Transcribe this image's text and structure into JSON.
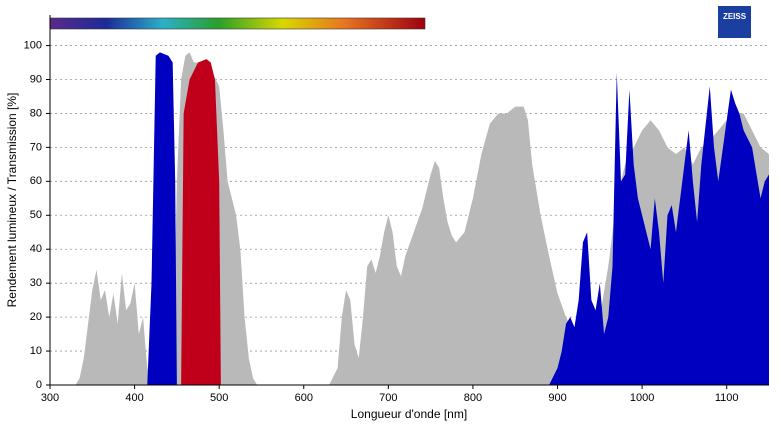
{
  "chart_data": {
    "type": "area",
    "x_label": "Longueur d'onde [nm]",
    "y_label": "Rendement lumineux / Transmission [%]",
    "logo": "ZEISS",
    "xlim": [
      300,
      1150
    ],
    "xticks": [
      300,
      400,
      500,
      600,
      700,
      800,
      900,
      1000,
      1100
    ],
    "ylim": [
      0,
      109
    ],
    "yticks": [
      0,
      10,
      20,
      30,
      40,
      50,
      60,
      70,
      80,
      90,
      100
    ],
    "grid": true,
    "series": [
      {
        "color": "#b9b9b9",
        "x": [
          330,
          335,
          340,
          345,
          350,
          355,
          360,
          365,
          370,
          375,
          380,
          385,
          390,
          395,
          400,
          405,
          410,
          415,
          420,
          445,
          450,
          455,
          460,
          465,
          470,
          480,
          490,
          500,
          505,
          510,
          515,
          520,
          525,
          530,
          535,
          540,
          545,
          630,
          640,
          645,
          650,
          655,
          660,
          665,
          670,
          675,
          680,
          685,
          690,
          695,
          700,
          705,
          710,
          715,
          720,
          730,
          740,
          750,
          755,
          760,
          765,
          770,
          775,
          780,
          790,
          800,
          810,
          820,
          830,
          840,
          850,
          860,
          865,
          870,
          880,
          890,
          900,
          910,
          920,
          930,
          940,
          950,
          960,
          970,
          980,
          990,
          1000,
          1010,
          1020,
          1030,
          1040,
          1050,
          1060,
          1070,
          1080,
          1090,
          1100,
          1110,
          1120,
          1130,
          1140,
          1150
        ],
        "values": [
          0,
          2,
          8,
          18,
          28,
          34,
          25,
          28,
          20,
          27,
          18,
          33,
          22,
          24,
          30,
          15,
          20,
          5,
          0,
          0,
          60,
          90,
          97,
          98,
          95,
          95,
          93,
          88,
          75,
          60,
          55,
          50,
          40,
          20,
          8,
          2,
          0,
          0,
          5,
          20,
          28,
          25,
          12,
          8,
          20,
          35,
          37,
          33,
          38,
          45,
          50,
          45,
          35,
          32,
          38,
          45,
          52,
          62,
          66,
          64,
          55,
          48,
          44,
          42,
          45,
          55,
          68,
          77,
          80,
          80,
          82,
          82,
          78,
          65,
          50,
          38,
          27,
          20,
          15,
          12,
          18,
          20,
          35,
          55,
          65,
          70,
          75,
          78,
          75,
          70,
          68,
          70,
          65,
          70,
          72,
          75,
          78,
          80,
          80,
          75,
          70,
          68
        ]
      },
      {
        "color": "#0000c0",
        "x": [
          415,
          420,
          425,
          430,
          440,
          445,
          448,
          450,
          890,
          900,
          905,
          910,
          915,
          920,
          925,
          930,
          935,
          940,
          945,
          950,
          955,
          960,
          965,
          970,
          975,
          980,
          985,
          990,
          995,
          1000,
          1005,
          1010,
          1015,
          1020,
          1025,
          1030,
          1035,
          1040,
          1050,
          1055,
          1060,
          1065,
          1070,
          1080,
          1085,
          1090,
          1100,
          1105,
          1110,
          1115,
          1120,
          1130,
          1140,
          1145,
          1150
        ],
        "values": [
          0,
          30,
          97,
          98,
          97,
          95,
          60,
          0,
          0,
          5,
          10,
          18,
          20,
          17,
          25,
          42,
          45,
          25,
          22,
          30,
          15,
          20,
          35,
          92,
          60,
          62,
          87,
          65,
          55,
          50,
          45,
          40,
          55,
          45,
          30,
          50,
          53,
          45,
          65,
          75,
          60,
          48,
          65,
          88,
          70,
          60,
          78,
          87,
          83,
          80,
          75,
          70,
          55,
          60,
          62
        ]
      },
      {
        "color": "#c0001a",
        "x": [
          455,
          458,
          465,
          475,
          485,
          490,
          495,
          500,
          502
        ],
        "values": [
          0,
          80,
          90,
          95,
          96,
          95,
          90,
          60,
          0
        ]
      }
    ]
  }
}
